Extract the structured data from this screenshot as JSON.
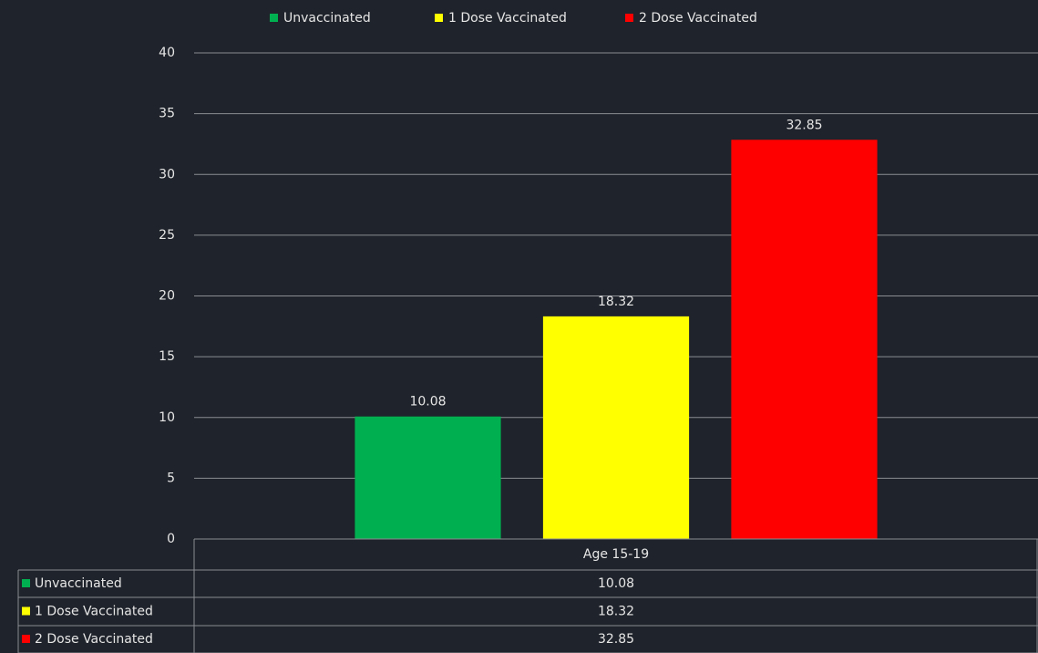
{
  "chart_data": {
    "type": "bar",
    "categories": [
      "Age 15-19"
    ],
    "series": [
      {
        "name": "Unvaccinated",
        "color": "#00b050",
        "values": [
          10.08
        ]
      },
      {
        "name": "1 Dose Vaccinated",
        "color": "#ffff00",
        "values": [
          18.32
        ]
      },
      {
        "name": "2 Dose Vaccinated",
        "color": "#ff0000",
        "values": [
          32.85
        ]
      }
    ],
    "ylim": [
      0,
      40
    ],
    "yticks": [
      0,
      5,
      10,
      15,
      20,
      25,
      30,
      35,
      40
    ],
    "grid": true,
    "legend": "top",
    "data_table": true
  }
}
